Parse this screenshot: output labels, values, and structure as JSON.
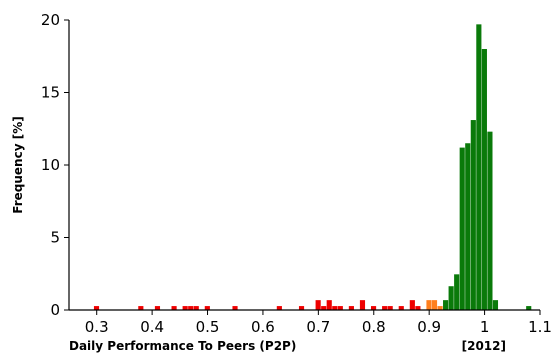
{
  "chart_data": {
    "type": "bar",
    "title": "",
    "xlabel": "Daily Performance To Peers (P2P)",
    "ylabel": "Frequency [%]",
    "year_label": "[2012]",
    "xlim": [
      0.25,
      1.1
    ],
    "ylim": [
      0,
      20
    ],
    "bin_width": 0.01,
    "xticks": [
      0.3,
      0.4,
      0.5,
      0.6,
      0.7,
      0.8,
      0.9,
      1.0,
      1.1
    ],
    "xtick_labels": [
      "0.3",
      "0.4",
      "0.5",
      "0.6",
      "0.7",
      "0.8",
      "0.9",
      "1",
      "1.1"
    ],
    "yticks": [
      0,
      5,
      10,
      15,
      20
    ],
    "ytick_labels": [
      "0",
      "5",
      "10",
      "15",
      "20"
    ],
    "grid": false,
    "legend": "none",
    "colors": {
      "red": "#ee0000",
      "orange": "#ff7f1e",
      "green": "#0a7a0a"
    },
    "series": [
      {
        "color": "red",
        "bins": [
          {
            "x": 0.3,
            "value": 0.27
          },
          {
            "x": 0.38,
            "value": 0.27
          },
          {
            "x": 0.41,
            "value": 0.27
          },
          {
            "x": 0.44,
            "value": 0.27
          },
          {
            "x": 0.46,
            "value": 0.27
          },
          {
            "x": 0.47,
            "value": 0.27
          },
          {
            "x": 0.48,
            "value": 0.27
          },
          {
            "x": 0.5,
            "value": 0.27
          },
          {
            "x": 0.55,
            "value": 0.27
          },
          {
            "x": 0.63,
            "value": 0.27
          },
          {
            "x": 0.67,
            "value": 0.27
          },
          {
            "x": 0.7,
            "value": 0.68
          },
          {
            "x": 0.71,
            "value": 0.27
          },
          {
            "x": 0.72,
            "value": 0.68
          },
          {
            "x": 0.73,
            "value": 0.27
          },
          {
            "x": 0.74,
            "value": 0.27
          },
          {
            "x": 0.76,
            "value": 0.27
          },
          {
            "x": 0.78,
            "value": 0.68
          },
          {
            "x": 0.8,
            "value": 0.27
          },
          {
            "x": 0.82,
            "value": 0.27
          },
          {
            "x": 0.83,
            "value": 0.27
          },
          {
            "x": 0.85,
            "value": 0.27
          },
          {
            "x": 0.87,
            "value": 0.68
          },
          {
            "x": 0.88,
            "value": 0.27
          }
        ]
      },
      {
        "color": "orange",
        "bins": [
          {
            "x": 0.9,
            "value": 0.68
          },
          {
            "x": 0.91,
            "value": 0.68
          },
          {
            "x": 0.92,
            "value": 0.27
          }
        ]
      },
      {
        "color": "green",
        "bins": [
          {
            "x": 0.93,
            "value": 0.68
          },
          {
            "x": 0.94,
            "value": 1.64
          },
          {
            "x": 0.95,
            "value": 2.46
          },
          {
            "x": 0.96,
            "value": 11.2
          },
          {
            "x": 0.97,
            "value": 11.5
          },
          {
            "x": 0.98,
            "value": 13.1
          },
          {
            "x": 0.99,
            "value": 19.7
          },
          {
            "x": 1.0,
            "value": 18.0
          },
          {
            "x": 1.01,
            "value": 12.3
          },
          {
            "x": 1.02,
            "value": 0.68
          },
          {
            "x": 1.08,
            "value": 0.27
          }
        ]
      }
    ]
  }
}
